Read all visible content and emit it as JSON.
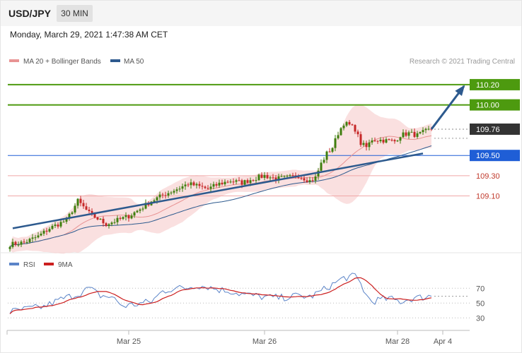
{
  "header": {
    "symbol": "USD/JPY",
    "timeframe": "30 MIN",
    "date": "Monday, March 29, 2021 1:47:38 AM CET"
  },
  "legend": {
    "ma20": "MA 20 + Bollinger Bands",
    "ma50": "MA 50",
    "credit": "Research © 2021 Trading Central",
    "rsi": "RSI",
    "ma9": "9MA"
  },
  "colors": {
    "resistance": "#4d9a0f",
    "support": "#c0392b",
    "pivot": "#1f5ed6",
    "last": "#333333",
    "bollinger": "#f8d0d0",
    "ma20": "#e89393",
    "ma50": "#2d5a8e",
    "trend": "#2d5a8e",
    "rsi": "#5b84c8",
    "ma9": "#cc1f1f",
    "candle_up": "#3f7e0e",
    "candle_down": "#c62828"
  },
  "chart_data": {
    "type": "candlestick",
    "ylim": [
      108.58,
      110.36
    ],
    "price_levels": [
      {
        "value": 110.2,
        "label": "110.20",
        "kind": "resistance"
      },
      {
        "value": 110.0,
        "label": "110.00",
        "kind": "resistance"
      },
      {
        "value": 109.76,
        "label": "109.76",
        "kind": "last"
      },
      {
        "value": 109.5,
        "label": "109.50",
        "kind": "pivot"
      },
      {
        "value": 109.3,
        "label": "109.30",
        "kind": "support"
      },
      {
        "value": 109.1,
        "label": "109.10",
        "kind": "support"
      }
    ],
    "x_ticks": [
      {
        "index": 42,
        "label": "Mar 25"
      },
      {
        "index": 90,
        "label": "Mar 26"
      },
      {
        "index": 137,
        "label": "Mar 28"
      },
      {
        "index": 153,
        "label": "Apr 4"
      }
    ],
    "candle_count": 150,
    "waypoints": [
      [
        0,
        108.62
      ],
      [
        5,
        108.64
      ],
      [
        10,
        108.7
      ],
      [
        14,
        108.78
      ],
      [
        20,
        108.86
      ],
      [
        24,
        109.05
      ],
      [
        28,
        108.93
      ],
      [
        34,
        108.82
      ],
      [
        38,
        108.86
      ],
      [
        42,
        108.9
      ],
      [
        46,
        108.97
      ],
      [
        50,
        109.05
      ],
      [
        55,
        109.12
      ],
      [
        60,
        109.18
      ],
      [
        63,
        109.22
      ],
      [
        66,
        109.2
      ],
      [
        70,
        109.17
      ],
      [
        74,
        109.22
      ],
      [
        78,
        109.25
      ],
      [
        82,
        109.23
      ],
      [
        86,
        109.27
      ],
      [
        90,
        109.3
      ],
      [
        94,
        109.27
      ],
      [
        98,
        109.28
      ],
      [
        102,
        109.3
      ],
      [
        106,
        109.25
      ],
      [
        108,
        109.28
      ],
      [
        110,
        109.42
      ],
      [
        112,
        109.52
      ],
      [
        114,
        109.58
      ],
      [
        116,
        109.72
      ],
      [
        118,
        109.82
      ],
      [
        120,
        109.8
      ],
      [
        122,
        109.76
      ],
      [
        124,
        109.62
      ],
      [
        126,
        109.58
      ],
      [
        128,
        109.66
      ],
      [
        132,
        109.65
      ],
      [
        136,
        109.64
      ],
      [
        138,
        109.7
      ],
      [
        141,
        109.72
      ],
      [
        144,
        109.7
      ],
      [
        147,
        109.74
      ],
      [
        149,
        109.76
      ]
    ],
    "trend_line": [
      [
        1,
        108.78
      ],
      [
        146,
        109.52
      ]
    ],
    "forecast_arrow": [
      [
        148,
        109.76
      ],
      [
        160,
        110.2
      ]
    ],
    "rsi": {
      "ylim": [
        15,
        95
      ],
      "ticks": [
        70,
        50,
        30
      ],
      "waypoints": [
        [
          0,
          38
        ],
        [
          6,
          42
        ],
        [
          12,
          45
        ],
        [
          18,
          55
        ],
        [
          24,
          62
        ],
        [
          28,
          70
        ],
        [
          32,
          60
        ],
        [
          36,
          58
        ],
        [
          40,
          46
        ],
        [
          44,
          48
        ],
        [
          50,
          52
        ],
        [
          54,
          66
        ],
        [
          58,
          70
        ],
        [
          62,
          70
        ],
        [
          66,
          74
        ],
        [
          70,
          72
        ],
        [
          74,
          68
        ],
        [
          78,
          66
        ],
        [
          82,
          62
        ],
        [
          86,
          60
        ],
        [
          90,
          58
        ],
        [
          96,
          57
        ],
        [
          102,
          60
        ],
        [
          106,
          58
        ],
        [
          110,
          66
        ],
        [
          114,
          75
        ],
        [
          118,
          84
        ],
        [
          122,
          86
        ],
        [
          124,
          76
        ],
        [
          126,
          60
        ],
        [
          128,
          52
        ],
        [
          130,
          54
        ],
        [
          134,
          56
        ],
        [
          138,
          52
        ],
        [
          142,
          56
        ],
        [
          146,
          58
        ],
        [
          149,
          60
        ]
      ]
    }
  }
}
